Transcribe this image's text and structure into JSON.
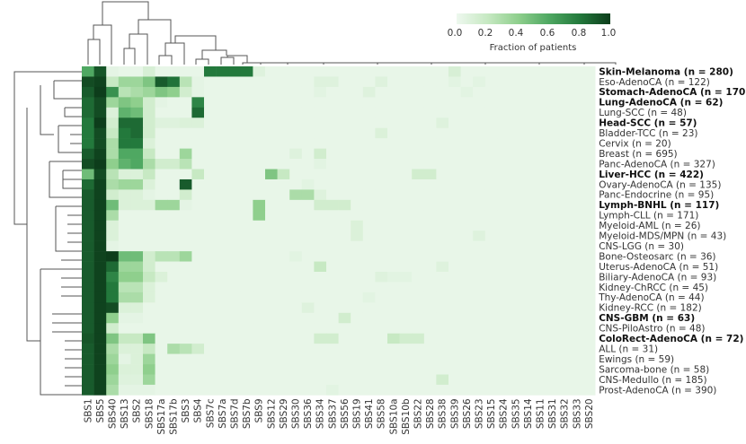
{
  "chart_data": {
    "type": "heatmap",
    "title": "",
    "colorbar": {
      "label": "Fraction of patients",
      "ticks": [
        "0.0",
        "0.2",
        "0.4",
        "0.6",
        "0.8",
        "1.0"
      ],
      "range": [
        0,
        1
      ],
      "color_low": "#eef8ef",
      "color_high": "#0d3d1b"
    },
    "columns": [
      "SBS1",
      "SBS5",
      "SBS40",
      "SBS13",
      "SBS2",
      "SBS18",
      "SBS17a",
      "SBS17b",
      "SBS3",
      "SBS4",
      "SBS7c",
      "SBS7a",
      "SBS7d",
      "SBS7b",
      "SBS9",
      "SBS12",
      "SBS29",
      "SBS30",
      "SBS36",
      "SBS34",
      "SBS37",
      "SBS56",
      "SBS19",
      "SBS41",
      "SBS58",
      "SBS10a",
      "SBS10b",
      "SBS22",
      "SBS28",
      "SBS38",
      "SBS39",
      "SBS26",
      "SBS23",
      "SBS15",
      "SBS24",
      "SBS35",
      "SBS14",
      "SBS11",
      "SBS31",
      "SBS32",
      "SBS33",
      "SBS20"
    ],
    "rows": [
      {
        "label": "Skin-Melanoma (n = 280)",
        "bold": true
      },
      {
        "label": "Eso-AdenoCA (n = 122)",
        "bold": false
      },
      {
        "label": "Stomach-AdenoCA (n = 170)",
        "bold": true
      },
      {
        "label": "Lung-AdenoCA (n = 62)",
        "bold": true
      },
      {
        "label": "Lung-SCC (n = 48)",
        "bold": false
      },
      {
        "label": "Head-SCC (n = 57)",
        "bold": true
      },
      {
        "label": "Bladder-TCC (n = 23)",
        "bold": false
      },
      {
        "label": "Cervix (n = 20)",
        "bold": false
      },
      {
        "label": "Breast (n = 695)",
        "bold": false
      },
      {
        "label": "Panc-AdenoCA (n = 327)",
        "bold": false
      },
      {
        "label": "Liver-HCC (n = 422)",
        "bold": true
      },
      {
        "label": "Ovary-AdenoCA (n = 135)",
        "bold": false
      },
      {
        "label": "Panc-Endocrine (n = 95)",
        "bold": false
      },
      {
        "label": "Lymph-BNHL (n = 117)",
        "bold": true
      },
      {
        "label": "Lymph-CLL (n = 171)",
        "bold": false
      },
      {
        "label": "Myeloid-AML (n = 26)",
        "bold": false
      },
      {
        "label": "Myeloid-MDS/MPN (n = 43)",
        "bold": false
      },
      {
        "label": "CNS-LGG (n = 30)",
        "bold": false
      },
      {
        "label": "Bone-Osteosarc (n = 36)",
        "bold": false
      },
      {
        "label": "Uterus-AdenoCA (n = 51)",
        "bold": false
      },
      {
        "label": "Biliary-AdenoCA (n = 93)",
        "bold": false
      },
      {
        "label": "Kidney-ChRCC (n = 45)",
        "bold": false
      },
      {
        "label": "Thy-AdenoCA (n = 44)",
        "bold": false
      },
      {
        "label": "Kidney-RCC (n = 182)",
        "bold": false
      },
      {
        "label": "CNS-GBM (n = 63)",
        "bold": true
      },
      {
        "label": "CNS-PiloAstro (n = 48)",
        "bold": false
      },
      {
        "label": "ColoRect-AdenoCA (n = 72)",
        "bold": true
      },
      {
        "label": "ALL (n = 31)",
        "bold": false
      },
      {
        "label": "Ewings (n = 59)",
        "bold": false
      },
      {
        "label": "Sarcoma-bone (n = 58)",
        "bold": false
      },
      {
        "label": "CNS-Medullo (n = 185)",
        "bold": false
      },
      {
        "label": "Prost-AdenoCA (n = 390)",
        "bold": false
      }
    ],
    "base_value": 0.03,
    "cells": [
      [
        0,
        0,
        0.6
      ],
      [
        0,
        1,
        0.92
      ],
      [
        0,
        2,
        0.05
      ],
      [
        0,
        5,
        0.12
      ],
      [
        0,
        10,
        0.8
      ],
      [
        0,
        11,
        0.8
      ],
      [
        0,
        12,
        0.8
      ],
      [
        0,
        13,
        0.8
      ],
      [
        0,
        14,
        0.08
      ],
      [
        0,
        30,
        0.12
      ],
      [
        1,
        0,
        0.95
      ],
      [
        1,
        1,
        0.98
      ],
      [
        1,
        2,
        0.2
      ],
      [
        1,
        3,
        0.35
      ],
      [
        1,
        4,
        0.35
      ],
      [
        1,
        5,
        0.45
      ],
      [
        1,
        6,
        0.9
      ],
      [
        1,
        7,
        0.82
      ],
      [
        1,
        8,
        0.25
      ],
      [
        1,
        9,
        0.05
      ],
      [
        1,
        19,
        0.08
      ],
      [
        1,
        20,
        0.08
      ],
      [
        1,
        24,
        0.08
      ],
      [
        1,
        30,
        0.06
      ],
      [
        1,
        32,
        0.06
      ],
      [
        2,
        0,
        0.9
      ],
      [
        2,
        1,
        1.0
      ],
      [
        2,
        2,
        0.7
      ],
      [
        2,
        3,
        0.25
      ],
      [
        2,
        4,
        0.3
      ],
      [
        2,
        5,
        0.35
      ],
      [
        2,
        6,
        0.45
      ],
      [
        2,
        7,
        0.4
      ],
      [
        2,
        8,
        0.15
      ],
      [
        2,
        9,
        0.05
      ],
      [
        2,
        19,
        0.06
      ],
      [
        2,
        23,
        0.08
      ],
      [
        2,
        31,
        0.06
      ],
      [
        3,
        0,
        0.85
      ],
      [
        3,
        1,
        0.95
      ],
      [
        3,
        2,
        0.35
      ],
      [
        3,
        3,
        0.45
      ],
      [
        3,
        4,
        0.4
      ],
      [
        3,
        5,
        0.15
      ],
      [
        3,
        6,
        0.05
      ],
      [
        3,
        9,
        0.75
      ],
      [
        4,
        0,
        0.85
      ],
      [
        4,
        1,
        0.95
      ],
      [
        4,
        2,
        0.1
      ],
      [
        4,
        3,
        0.55
      ],
      [
        4,
        4,
        0.5
      ],
      [
        4,
        5,
        0.15
      ],
      [
        4,
        9,
        0.85
      ],
      [
        5,
        0,
        0.8
      ],
      [
        5,
        1,
        1.0
      ],
      [
        5,
        2,
        0.15
      ],
      [
        5,
        3,
        0.85
      ],
      [
        5,
        4,
        0.85
      ],
      [
        5,
        5,
        0.15
      ],
      [
        5,
        6,
        0.08
      ],
      [
        5,
        7,
        0.08
      ],
      [
        5,
        8,
        0.1
      ],
      [
        5,
        9,
        0.1
      ],
      [
        5,
        29,
        0.08
      ],
      [
        6,
        0,
        0.8
      ],
      [
        6,
        1,
        0.95
      ],
      [
        6,
        2,
        0.2
      ],
      [
        6,
        3,
        0.8
      ],
      [
        6,
        4,
        0.85
      ],
      [
        6,
        5,
        0.15
      ],
      [
        6,
        24,
        0.1
      ],
      [
        7,
        0,
        0.8
      ],
      [
        7,
        1,
        0.95
      ],
      [
        7,
        2,
        0.3
      ],
      [
        7,
        3,
        0.8
      ],
      [
        7,
        4,
        0.8
      ],
      [
        7,
        5,
        0.1
      ],
      [
        8,
        0,
        0.9
      ],
      [
        8,
        1,
        0.98
      ],
      [
        8,
        2,
        0.3
      ],
      [
        8,
        3,
        0.6
      ],
      [
        8,
        4,
        0.6
      ],
      [
        8,
        5,
        0.2
      ],
      [
        8,
        8,
        0.35
      ],
      [
        8,
        19,
        0.15
      ],
      [
        8,
        17,
        0.08
      ],
      [
        9,
        0,
        0.95
      ],
      [
        9,
        1,
        1.0
      ],
      [
        9,
        2,
        0.4
      ],
      [
        9,
        3,
        0.55
      ],
      [
        9,
        4,
        0.6
      ],
      [
        9,
        5,
        0.3
      ],
      [
        9,
        6,
        0.15
      ],
      [
        9,
        7,
        0.15
      ],
      [
        9,
        8,
        0.25
      ],
      [
        9,
        19,
        0.06
      ],
      [
        10,
        0,
        0.5
      ],
      [
        10,
        1,
        0.95
      ],
      [
        10,
        2,
        0.25
      ],
      [
        10,
        3,
        0.1
      ],
      [
        10,
        4,
        0.1
      ],
      [
        10,
        5,
        0.2
      ],
      [
        10,
        9,
        0.2
      ],
      [
        10,
        15,
        0.45
      ],
      [
        10,
        16,
        0.2
      ],
      [
        10,
        27,
        0.15
      ],
      [
        10,
        28,
        0.15
      ],
      [
        11,
        0,
        0.85
      ],
      [
        11,
        1,
        0.98
      ],
      [
        11,
        2,
        0.3
      ],
      [
        11,
        3,
        0.35
      ],
      [
        11,
        4,
        0.35
      ],
      [
        11,
        5,
        0.1
      ],
      [
        11,
        8,
        0.9
      ],
      [
        11,
        18,
        0.06
      ],
      [
        12,
        0,
        0.9
      ],
      [
        12,
        1,
        0.98
      ],
      [
        12,
        2,
        0.15
      ],
      [
        12,
        3,
        0.1
      ],
      [
        12,
        4,
        0.1
      ],
      [
        12,
        5,
        0.05
      ],
      [
        12,
        8,
        0.15
      ],
      [
        12,
        17,
        0.3
      ],
      [
        12,
        18,
        0.3
      ],
      [
        12,
        19,
        0.08
      ],
      [
        13,
        0,
        0.9
      ],
      [
        13,
        1,
        0.98
      ],
      [
        13,
        2,
        0.5
      ],
      [
        13,
        3,
        0.1
      ],
      [
        13,
        4,
        0.1
      ],
      [
        13,
        5,
        0.1
      ],
      [
        13,
        6,
        0.35
      ],
      [
        13,
        7,
        0.35
      ],
      [
        13,
        8,
        0.05
      ],
      [
        13,
        14,
        0.4
      ],
      [
        13,
        19,
        0.15
      ],
      [
        13,
        20,
        0.15
      ],
      [
        13,
        21,
        0.15
      ],
      [
        14,
        0,
        0.9
      ],
      [
        14,
        1,
        0.98
      ],
      [
        14,
        2,
        0.3
      ],
      [
        14,
        14,
        0.4
      ],
      [
        15,
        0,
        0.9
      ],
      [
        15,
        1,
        0.98
      ],
      [
        15,
        2,
        0.1
      ],
      [
        15,
        22,
        0.1
      ],
      [
        16,
        0,
        0.9
      ],
      [
        16,
        1,
        0.98
      ],
      [
        16,
        2,
        0.1
      ],
      [
        16,
        22,
        0.1
      ],
      [
        16,
        32,
        0.08
      ],
      [
        17,
        0,
        0.9
      ],
      [
        17,
        1,
        0.98
      ],
      [
        17,
        2,
        0.05
      ],
      [
        18,
        0,
        0.9
      ],
      [
        18,
        1,
        0.98
      ],
      [
        18,
        2,
        1.0
      ],
      [
        18,
        3,
        0.5
      ],
      [
        18,
        4,
        0.5
      ],
      [
        18,
        5,
        0.15
      ],
      [
        18,
        6,
        0.25
      ],
      [
        18,
        7,
        0.25
      ],
      [
        18,
        8,
        0.35
      ],
      [
        18,
        17,
        0.06
      ],
      [
        19,
        0,
        0.9
      ],
      [
        19,
        1,
        0.98
      ],
      [
        19,
        2,
        0.85
      ],
      [
        19,
        3,
        0.35
      ],
      [
        19,
        4,
        0.35
      ],
      [
        19,
        5,
        0.15
      ],
      [
        19,
        19,
        0.2
      ],
      [
        19,
        29,
        0.08
      ],
      [
        20,
        0,
        0.9
      ],
      [
        20,
        1,
        0.98
      ],
      [
        20,
        2,
        0.75
      ],
      [
        20,
        3,
        0.4
      ],
      [
        20,
        4,
        0.4
      ],
      [
        20,
        5,
        0.2
      ],
      [
        20,
        6,
        0.1
      ],
      [
        20,
        24,
        0.08
      ],
      [
        20,
        25,
        0.06
      ],
      [
        20,
        26,
        0.06
      ],
      [
        21,
        0,
        0.9
      ],
      [
        21,
        1,
        0.98
      ],
      [
        21,
        2,
        0.8
      ],
      [
        21,
        3,
        0.25
      ],
      [
        21,
        4,
        0.25
      ],
      [
        21,
        5,
        0.1
      ],
      [
        22,
        0,
        0.9
      ],
      [
        22,
        1,
        0.98
      ],
      [
        22,
        2,
        0.8
      ],
      [
        22,
        3,
        0.3
      ],
      [
        22,
        4,
        0.3
      ],
      [
        22,
        5,
        0.1
      ],
      [
        22,
        23,
        0.06
      ],
      [
        23,
        0,
        0.9
      ],
      [
        23,
        1,
        0.98
      ],
      [
        23,
        2,
        0.95
      ],
      [
        23,
        3,
        0.1
      ],
      [
        23,
        4,
        0.1
      ],
      [
        23,
        18,
        0.08
      ],
      [
        24,
        0,
        0.9
      ],
      [
        24,
        1,
        0.98
      ],
      [
        24,
        2,
        0.4
      ],
      [
        24,
        3,
        0.05
      ],
      [
        24,
        4,
        0.05
      ],
      [
        24,
        21,
        0.15
      ],
      [
        25,
        0,
        0.9
      ],
      [
        25,
        1,
        0.98
      ],
      [
        25,
        2,
        0.15
      ],
      [
        26,
        0,
        0.92
      ],
      [
        26,
        1,
        0.98
      ],
      [
        26,
        2,
        0.45
      ],
      [
        26,
        3,
        0.2
      ],
      [
        26,
        4,
        0.2
      ],
      [
        26,
        5,
        0.45
      ],
      [
        26,
        19,
        0.15
      ],
      [
        26,
        20,
        0.15
      ],
      [
        26,
        25,
        0.2
      ],
      [
        26,
        26,
        0.15
      ],
      [
        26,
        27,
        0.15
      ],
      [
        27,
        0,
        0.9
      ],
      [
        27,
        1,
        0.98
      ],
      [
        27,
        2,
        0.3
      ],
      [
        27,
        3,
        0.1
      ],
      [
        27,
        4,
        0.1
      ],
      [
        27,
        5,
        0.2
      ],
      [
        27,
        7,
        0.3
      ],
      [
        27,
        8,
        0.25
      ],
      [
        27,
        9,
        0.15
      ],
      [
        28,
        0,
        0.9
      ],
      [
        28,
        1,
        0.98
      ],
      [
        28,
        2,
        0.35
      ],
      [
        28,
        3,
        0.05
      ],
      [
        28,
        4,
        0.1
      ],
      [
        28,
        5,
        0.35
      ],
      [
        29,
        0,
        0.9
      ],
      [
        29,
        1,
        0.98
      ],
      [
        29,
        2,
        0.4
      ],
      [
        29,
        3,
        0.1
      ],
      [
        29,
        4,
        0.1
      ],
      [
        29,
        5,
        0.4
      ],
      [
        30,
        0,
        0.9
      ],
      [
        30,
        1,
        0.98
      ],
      [
        30,
        2,
        0.35
      ],
      [
        30,
        3,
        0.08
      ],
      [
        30,
        4,
        0.08
      ],
      [
        30,
        5,
        0.35
      ],
      [
        30,
        29,
        0.15
      ],
      [
        31,
        0,
        0.9
      ],
      [
        31,
        1,
        0.98
      ],
      [
        31,
        2,
        0.3
      ],
      [
        31,
        3,
        0.05
      ],
      [
        31,
        4,
        0.05
      ],
      [
        31,
        5,
        0.05
      ],
      [
        31,
        20,
        0.06
      ]
    ]
  }
}
